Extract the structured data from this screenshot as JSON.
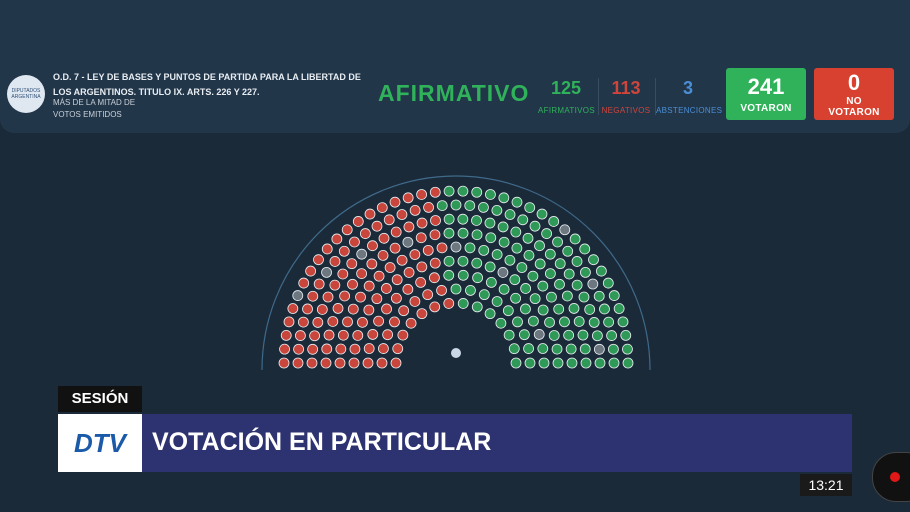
{
  "header": {
    "logo": "DIPUTADOS ARGENTINA",
    "title": "O.D. 7 - LEY DE BASES Y PUNTOS DE PARTIDA PARA LA LIBERTAD DE LOS ARGENTINOS. TITULO IX. ARTS. 226 Y 227.",
    "subtitle": "MÁS DE LA MITAD DE VOTOS EMITIDOS",
    "result": "AFIRMATIVO",
    "counts": [
      {
        "value": 125,
        "label": "AFIRMATIVOS"
      },
      {
        "value": 113,
        "label": "NEGATIVOS"
      },
      {
        "value": 3,
        "label": "ABSTENCIONES"
      }
    ],
    "voted": {
      "value": 241,
      "label": "VOTARON"
    },
    "not_voted": {
      "value": 0,
      "label": "NO VOTARON"
    }
  },
  "lower_third": {
    "tag": "SESIÓN",
    "logo": "DTV",
    "headline": "VOTACIÓN EN PARTICULAR",
    "clock": "13:21"
  }
}
